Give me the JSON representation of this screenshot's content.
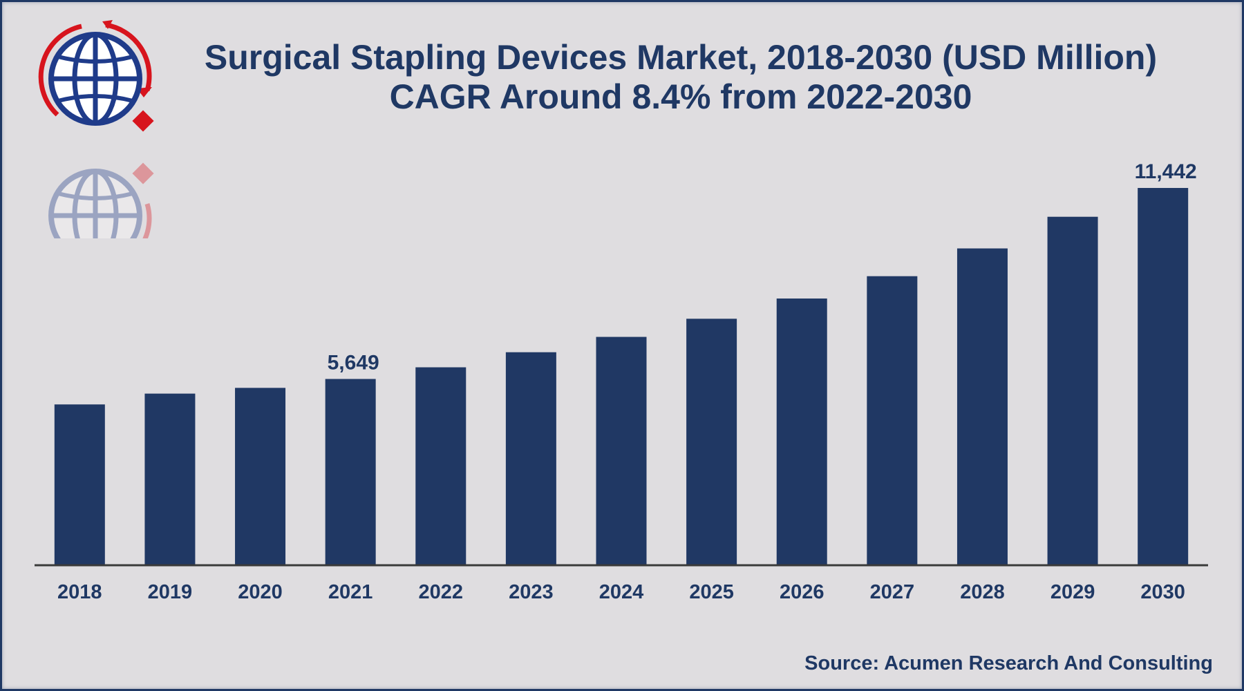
{
  "title_line1": "Surgical Stapling Devices Market, 2018-2030 (USD Million)",
  "title_line2": "CAGR Around 8.4% from 2022-2030",
  "source": "Source: Acumen Research And Consulting",
  "colors": {
    "bar": "#203864",
    "text": "#1f3864",
    "logo_red": "#d7141d",
    "baseline": "#3a3a3a"
  },
  "logo_icon": "globe-icon",
  "chart_data": {
    "type": "bar",
    "title": "Surgical Stapling Devices Market, 2018-2030 (USD Million)",
    "subtitle": "CAGR Around 8.4% from 2022-2030",
    "categories": [
      "2018",
      "2019",
      "2020",
      "2021",
      "2022",
      "2023",
      "2024",
      "2025",
      "2026",
      "2027",
      "2028",
      "2029",
      "2030"
    ],
    "values": [
      4877,
      5205,
      5379,
      5649,
      6003,
      6460,
      6925,
      7475,
      8089,
      8766,
      9608,
      10568,
      11442
    ],
    "data_labels": {
      "2021": "5,649",
      "2030": "11,442"
    },
    "ylim": [
      0,
      12000
    ],
    "grid": false,
    "legend": "none"
  }
}
